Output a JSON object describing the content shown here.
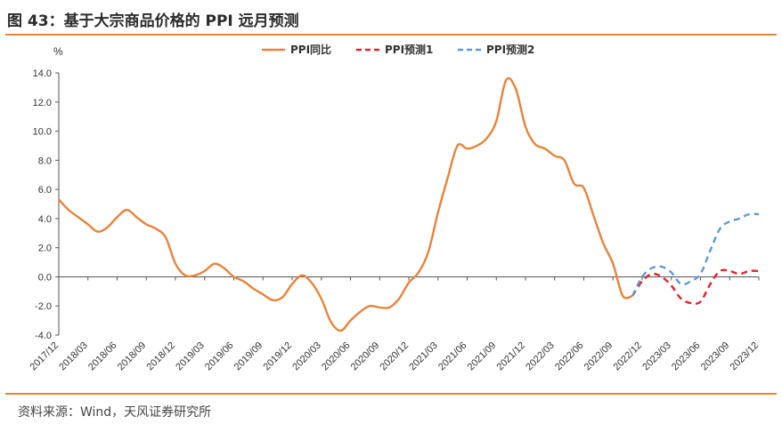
{
  "title": "图 43：基于大宗商品价格的 PPI 远月预测",
  "source": "资料来源：Wind，天风证券研究所",
  "chart_data": {
    "type": "line",
    "ylabel": "%",
    "ylim": [
      -4,
      14
    ],
    "yticks": [
      "14.0",
      "12.0",
      "10.0",
      "8.0",
      "6.0",
      "4.0",
      "2.0",
      "0.0",
      "-2.0",
      "-4.0"
    ],
    "ytick_values": [
      14,
      12,
      10,
      8,
      6,
      4,
      2,
      0,
      -2,
      -4
    ],
    "xticks": [
      "2017/12",
      "2018/03",
      "2018/06",
      "2018/09",
      "2018/12",
      "2019/03",
      "2019/06",
      "2019/09",
      "2019/12",
      "2020/03",
      "2020/06",
      "2020/09",
      "2020/12",
      "2021/03",
      "2021/06",
      "2021/09",
      "2021/12",
      "2022/03",
      "2022/06",
      "2022/09",
      "2022/12",
      "2023/03",
      "2023/06",
      "2023/09",
      "2023/12"
    ],
    "legend_position": "top",
    "grid": false,
    "series": [
      {
        "name": "PPI同比",
        "color": "#e8833a",
        "style": "solid",
        "points": [
          [
            "2017/12",
            5.3
          ],
          [
            "2018/01",
            4.6
          ],
          [
            "2018/02",
            4.1
          ],
          [
            "2018/03",
            3.6
          ],
          [
            "2018/04",
            3.1
          ],
          [
            "2018/05",
            3.4
          ],
          [
            "2018/06",
            4.1
          ],
          [
            "2018/07",
            4.6
          ],
          [
            "2018/08",
            4.1
          ],
          [
            "2018/09",
            3.6
          ],
          [
            "2018/10",
            3.3
          ],
          [
            "2018/11",
            2.7
          ],
          [
            "2018/12",
            0.9
          ],
          [
            "2019/01",
            0.1
          ],
          [
            "2019/02",
            0.1
          ],
          [
            "2019/03",
            0.4
          ],
          [
            "2019/04",
            0.9
          ],
          [
            "2019/05",
            0.6
          ],
          [
            "2019/06",
            0.0
          ],
          [
            "2019/07",
            -0.3
          ],
          [
            "2019/08",
            -0.8
          ],
          [
            "2019/09",
            -1.2
          ],
          [
            "2019/10",
            -1.6
          ],
          [
            "2019/11",
            -1.4
          ],
          [
            "2019/12",
            -0.5
          ],
          [
            "2020/01",
            0.1
          ],
          [
            "2020/02",
            -0.4
          ],
          [
            "2020/03",
            -1.5
          ],
          [
            "2020/04",
            -3.1
          ],
          [
            "2020/05",
            -3.7
          ],
          [
            "2020/06",
            -3.0
          ],
          [
            "2020/07",
            -2.4
          ],
          [
            "2020/08",
            -2.0
          ],
          [
            "2020/09",
            -2.1
          ],
          [
            "2020/10",
            -2.1
          ],
          [
            "2020/11",
            -1.5
          ],
          [
            "2020/12",
            -0.4
          ],
          [
            "2021/01",
            0.3
          ],
          [
            "2021/02",
            1.7
          ],
          [
            "2021/03",
            4.4
          ],
          [
            "2021/04",
            6.8
          ],
          [
            "2021/05",
            9.0
          ],
          [
            "2021/06",
            8.8
          ],
          [
            "2021/07",
            9.0
          ],
          [
            "2021/08",
            9.5
          ],
          [
            "2021/09",
            10.7
          ],
          [
            "2021/10",
            13.5
          ],
          [
            "2021/11",
            12.9
          ],
          [
            "2021/12",
            10.3
          ],
          [
            "2022/01",
            9.1
          ],
          [
            "2022/02",
            8.8
          ],
          [
            "2022/03",
            8.3
          ],
          [
            "2022/04",
            8.0
          ],
          [
            "2022/05",
            6.4
          ],
          [
            "2022/06",
            6.1
          ],
          [
            "2022/07",
            4.2
          ],
          [
            "2022/08",
            2.3
          ],
          [
            "2022/09",
            0.9
          ],
          [
            "2022/10",
            -1.3
          ],
          [
            "2022/11",
            -1.3
          ]
        ]
      },
      {
        "name": "PPI预测1",
        "color": "#e8202a",
        "style": "dashed",
        "points": [
          [
            "2022/11",
            -1.3
          ],
          [
            "2022/12",
            -0.3
          ],
          [
            "2023/01",
            0.2
          ],
          [
            "2023/02",
            0.0
          ],
          [
            "2023/03",
            -0.6
          ],
          [
            "2023/04",
            -1.5
          ],
          [
            "2023/05",
            -1.8
          ],
          [
            "2023/06",
            -1.7
          ],
          [
            "2023/07",
            -0.5
          ],
          [
            "2023/08",
            0.4
          ],
          [
            "2023/09",
            0.4
          ],
          [
            "2023/10",
            0.2
          ],
          [
            "2023/11",
            0.4
          ],
          [
            "2023/12",
            0.4
          ]
        ]
      },
      {
        "name": "PPI预测2",
        "color": "#5b9bd5",
        "style": "dashed",
        "points": [
          [
            "2022/11",
            -1.3
          ],
          [
            "2022/12",
            0.0
          ],
          [
            "2023/01",
            0.6
          ],
          [
            "2023/02",
            0.7
          ],
          [
            "2023/03",
            0.3
          ],
          [
            "2023/04",
            -0.5
          ],
          [
            "2023/05",
            -0.3
          ],
          [
            "2023/06",
            0.2
          ],
          [
            "2023/07",
            1.8
          ],
          [
            "2023/08",
            3.3
          ],
          [
            "2023/09",
            3.8
          ],
          [
            "2023/10",
            4.0
          ],
          [
            "2023/11",
            4.3
          ],
          [
            "2023/12",
            4.3
          ]
        ]
      }
    ]
  }
}
